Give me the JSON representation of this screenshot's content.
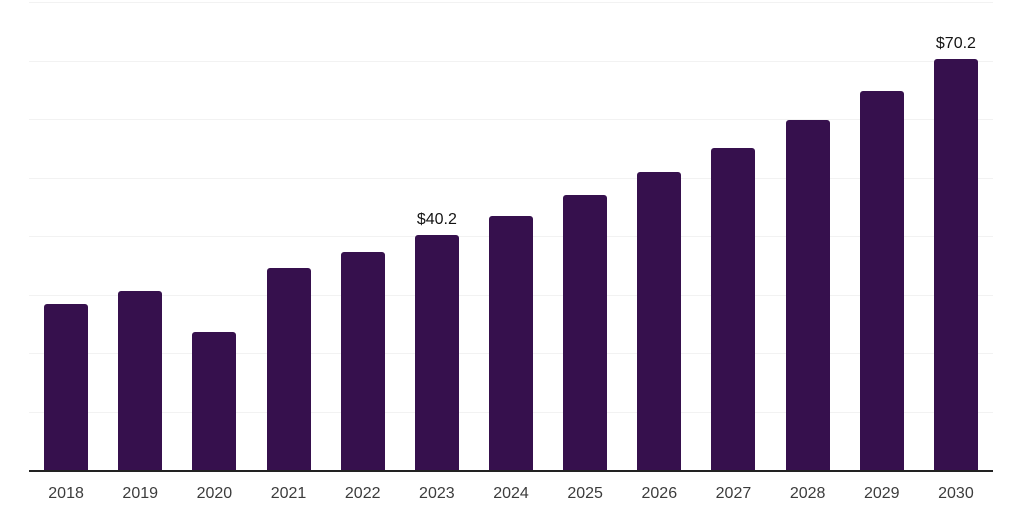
{
  "chart_data": {
    "type": "bar",
    "categories": [
      "2018",
      "2019",
      "2020",
      "2021",
      "2022",
      "2023",
      "2024",
      "2025",
      "2026",
      "2027",
      "2028",
      "2029",
      "2030"
    ],
    "values": [
      28.3,
      30.6,
      23.6,
      34.5,
      37.3,
      40.2,
      43.5,
      47.0,
      50.9,
      55.1,
      59.8,
      64.8,
      70.2
    ],
    "labeled_bars": {
      "2023": "$40.2",
      "2030": "$70.2"
    },
    "title": "",
    "xlabel": "",
    "ylabel": "",
    "ylim": [
      0,
      80
    ],
    "grid_step": 10,
    "grid": "horizontal",
    "legend_position": "none",
    "value_prefix": "$"
  },
  "colors": {
    "bar": "#36104D",
    "gridline": "#F2F2F2",
    "axis": "#222222",
    "tick_label": "#3C3C3C",
    "value_label": "#141414",
    "background": "#FFFFFF"
  }
}
